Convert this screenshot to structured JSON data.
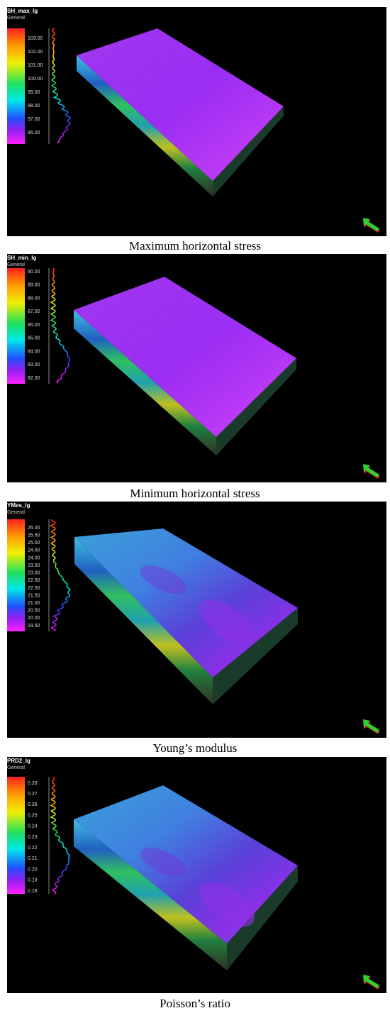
{
  "panels": [
    {
      "property": "SH_max_lg",
      "subtitle": "General",
      "ticks": [
        "103.00",
        "102.00",
        "101.00",
        "100.00",
        "99.00",
        "98.00",
        "97.00",
        "96.00"
      ],
      "caption": "Maximum horizontal stress"
    },
    {
      "property": "SH_min_lg",
      "subtitle": "General",
      "ticks": [
        "90.00",
        "89.00",
        "88.00",
        "87.00",
        "86.00",
        "85.00",
        "84.00",
        "83.00",
        "82.00"
      ],
      "caption": "Minimum horizontal stress"
    },
    {
      "property": "YMes_lg",
      "subtitle": "General",
      "ticks": [
        "26.00",
        "25.50",
        "25.00",
        "24.50",
        "24.00",
        "23.50",
        "23.00",
        "22.50",
        "22.00",
        "21.50",
        "21.00",
        "20.50",
        "20.00",
        "19.50"
      ],
      "caption": "Young’s modulus"
    },
    {
      "property": "PRD2_lg",
      "subtitle": "General",
      "ticks": [
        "0.28",
        "0.27",
        "0.26",
        "0.25",
        "0.24",
        "0.23",
        "0.22",
        "0.21",
        "0.20",
        "0.19",
        "0.18"
      ],
      "caption": "Poisson’s ratio"
    }
  ]
}
